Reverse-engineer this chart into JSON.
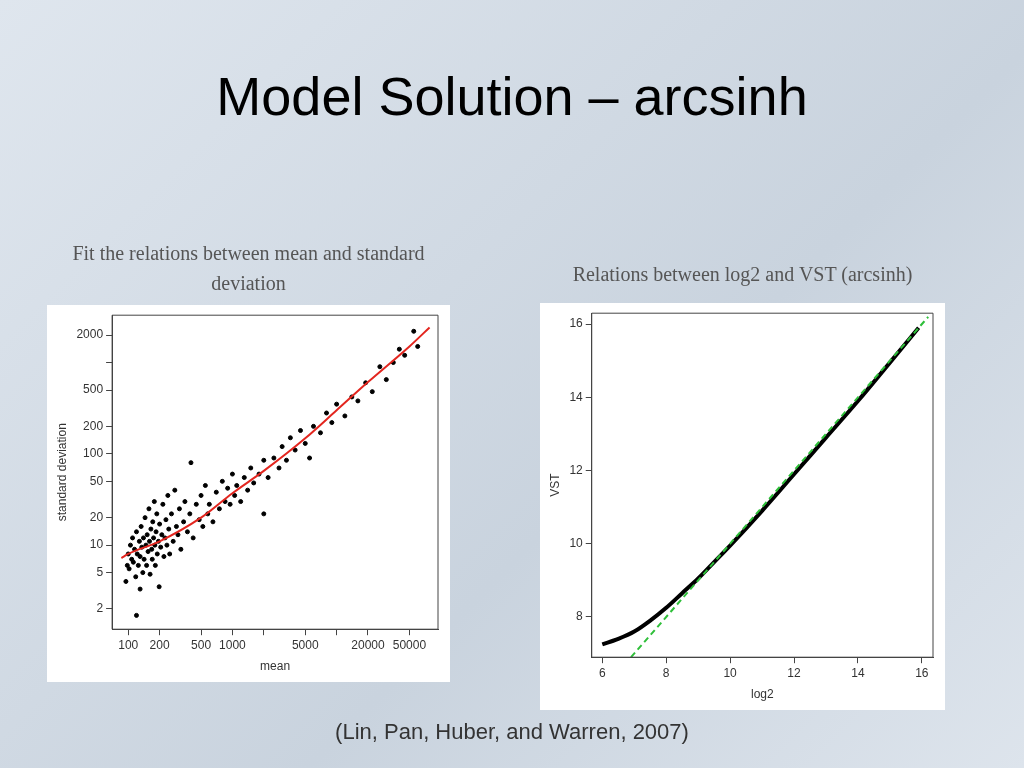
{
  "chart_data": [
    {
      "type": "other",
      "title": "Model Solution – arcsinh",
      "annotations": [
        "(Lin, Pan, Huber, and Warren, 2007)"
      ]
    },
    {
      "type": "scatter",
      "title": "Fit the relations between mean and standard deviation",
      "xlabel": "mean",
      "ylabel": "standard deviation",
      "log": "xy",
      "grid": false,
      "legend": false,
      "xlim": [
        70,
        94000
      ],
      "ylim": [
        1.2,
        3300
      ],
      "xticks": [
        100,
        200,
        500,
        1000,
        {
          "value": 2000,
          "label": null
        },
        5000,
        {
          "value": 10000,
          "label": null
        },
        20000,
        50000
      ],
      "yticks": [
        2,
        5,
        10,
        20,
        50,
        100,
        200,
        500,
        {
          "value": 1000,
          "label": null
        },
        2000
      ],
      "series": [
        {
          "type": "scatter",
          "color": "#000000",
          "marker": "circle",
          "x": [
            95,
            98,
            100,
            102,
            105,
            108,
            110,
            112,
            115,
            118,
            120,
            120,
            122,
            125,
            128,
            130,
            130,
            133,
            135,
            138,
            140,
            142,
            145,
            148,
            150,
            152,
            155,
            158,
            160,
            162,
            165,
            168,
            170,
            172,
            175,
            178,
            180,
            182,
            185,
            188,
            190,
            195,
            198,
            200,
            205,
            210,
            215,
            220,
            225,
            230,
            235,
            240,
            245,
            250,
            260,
            270,
            280,
            290,
            300,
            310,
            320,
            340,
            350,
            370,
            390,
            400,
            420,
            450,
            480,
            500,
            520,
            550,
            580,
            600,
            650,
            700,
            750,
            800,
            850,
            900,
            950,
            1000,
            1050,
            1100,
            1200,
            1300,
            1400,
            1500,
            1600,
            1800,
            2000,
            2000,
            2200,
            2500,
            2800,
            3000,
            3300,
            3600,
            4000,
            4500,
            5000,
            5500,
            6000,
            7000,
            8000,
            9000,
            10000,
            12000,
            14000,
            16000,
            19000,
            22000,
            26000,
            30000,
            35000,
            40000,
            45000,
            55000,
            60000
          ],
          "values": [
            4,
            6,
            8,
            5.5,
            10,
            7,
            12,
            6.5,
            9,
            4.5,
            1.7,
            14,
            8,
            6,
            11,
            3.3,
            7.5,
            16,
            9.5,
            5,
            12,
            7,
            20,
            10,
            6,
            13,
            8.5,
            25,
            11,
            4.8,
            15,
            9,
            7,
            18,
            12,
            30,
            10,
            6,
            14,
            22,
            8,
            11,
            3.5,
            17,
            9.5,
            13,
            28,
            7.5,
            12,
            19,
            10,
            35,
            15,
            8,
            22,
            11,
            40,
            16,
            13,
            25,
            9,
            18,
            30,
            14,
            22,
            80,
            12,
            28,
            19,
            35,
            16,
            45,
            22,
            28,
            18,
            38,
            25,
            50,
            30,
            42,
            28,
            60,
            35,
            45,
            30,
            55,
            40,
            70,
            48,
            60,
            22,
            85,
            55,
            90,
            70,
            120,
            85,
            150,
            110,
            180,
            130,
            90,
            200,
            170,
            280,
            220,
            350,
            260,
            420,
            380,
            600,
            480,
            900,
            650,
            1000,
            1400,
            1200,
            2200,
            1500
          ]
        },
        {
          "type": "line",
          "color": "#e3261f",
          "marker": "none",
          "line_style": "solid",
          "x": [
            86,
            100,
            200,
            500,
            1000,
            2000,
            5000,
            10000,
            20000,
            50000,
            78000
          ],
          "values": [
            7.2,
            8,
            11,
            20,
            37,
            65,
            148,
            300,
            611,
            1500,
            2420
          ]
        }
      ]
    },
    {
      "type": "line",
      "title": "Relations between log2 and VST (arcsinh)",
      "xlabel": "log2",
      "ylabel": "VST",
      "grid": false,
      "legend": false,
      "xlim": [
        5.67,
        16.35
      ],
      "ylim": [
        6.9,
        16.3
      ],
      "xticks": [
        6,
        8,
        10,
        12,
        14,
        16
      ],
      "yticks": [
        8,
        10,
        12,
        14,
        16
      ],
      "series": [
        {
          "type": "line",
          "color": "#000000",
          "marker": "none",
          "line_style": "solid",
          "x": [
            6,
            6.5,
            7,
            7.5,
            8,
            8.5,
            9,
            9.5,
            10,
            11,
            12,
            13,
            14,
            15,
            15.9
          ],
          "values": [
            7.25,
            7.4,
            7.6,
            7.9,
            8.25,
            8.65,
            9.05,
            9.5,
            9.95,
            10.9,
            11.9,
            12.9,
            13.9,
            14.95,
            15.9
          ]
        },
        {
          "type": "line",
          "color": "#2fbf3a",
          "marker": "none",
          "line_style": "dashed",
          "x": [
            6.9,
            16.2
          ],
          "values": [
            6.9,
            16.2
          ]
        }
      ]
    }
  ]
}
